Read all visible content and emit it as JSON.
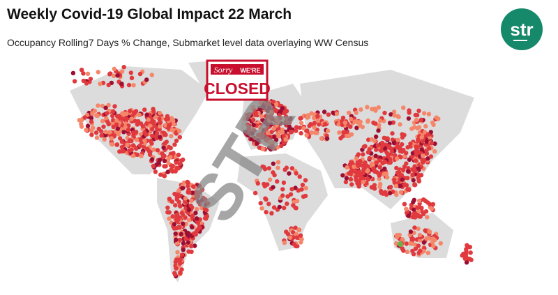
{
  "header": {
    "title": "Weekly Covid-19 Global Impact 22 March",
    "subtitle": "Occupancy Rolling7 Days % Change, Submarket level data overlaying WW Census"
  },
  "logo": {
    "text": "str"
  },
  "sign": {
    "line1": "Sorry",
    "line2": "WE'RE",
    "line3": "CLOSED"
  },
  "watermark": "STR"
}
